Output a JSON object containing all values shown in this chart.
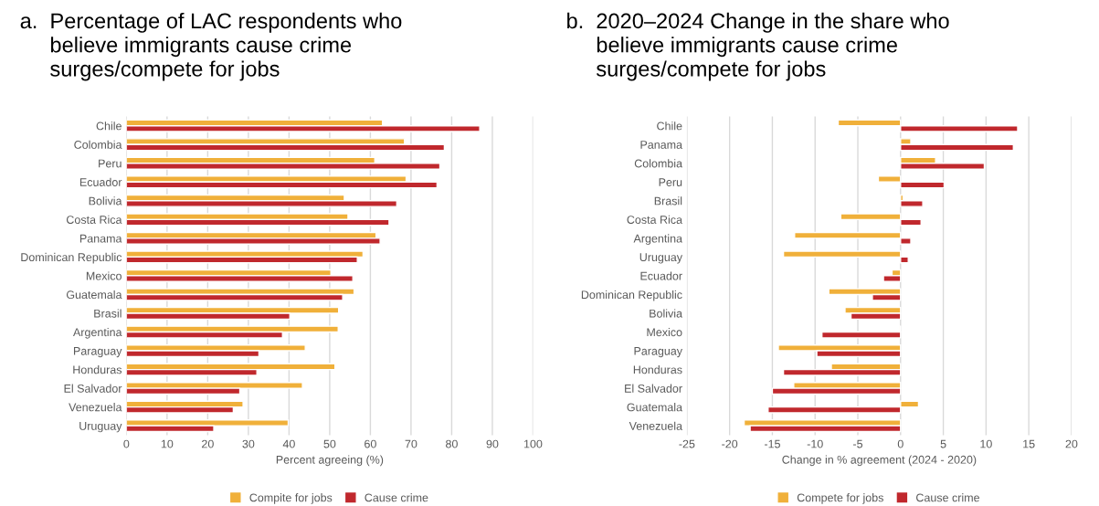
{
  "chart_data": [
    {
      "type": "bar",
      "orientation": "horizontal",
      "title": "a.  Percentage of LAC respondents who\n     believe immigrants cause crime\n     surges/compete for jobs",
      "xlabel": "Percent agreeing (%)",
      "categories": [
        "Chile",
        "Colombia",
        "Peru",
        "Ecuador",
        "Bolivia",
        "Costa Rica",
        "Panama",
        "Dominican Republic",
        "Mexico",
        "Guatemala",
        "Brasil",
        "Argentina",
        "Paraguay",
        "Honduras",
        "El Salvador",
        "Venezuela",
        "Uruguay"
      ],
      "series": [
        {
          "name": "Compite for jobs",
          "color": "#f0b03a",
          "values": [
            63.0,
            68.4,
            61.1,
            68.8,
            53.6,
            54.5,
            61.4,
            58.2,
            50.3,
            56.0,
            52.2,
            52.1,
            44.0,
            51.3,
            43.3,
            28.7,
            39.8
          ]
        },
        {
          "name": "Cause crime",
          "color": "#c0282d",
          "values": [
            86.9,
            78.2,
            77.1,
            76.4,
            66.5,
            64.6,
            62.4,
            56.8,
            55.7,
            53.2,
            40.2,
            38.4,
            32.6,
            32.1,
            27.9,
            26.3,
            21.5
          ]
        }
      ],
      "xlim": [
        0,
        100
      ],
      "xticks": [
        0,
        10,
        20,
        30,
        40,
        50,
        60,
        70,
        80,
        90,
        100
      ],
      "grid": "x",
      "legend": "bottom"
    },
    {
      "type": "bar",
      "orientation": "horizontal",
      "title": "b.  2020–2024 Change in the share who\n     believe immigrants cause crime\n     surges/compete for jobs",
      "xlabel": "Change in % agreement (2024 - 2020)",
      "categories": [
        "Chile",
        "Panama",
        "Colombia",
        "Peru",
        "Brasil",
        "Costa Rica",
        "Argentina",
        "Uruguay",
        "Ecuador",
        "Dominican Republic",
        "Bolivia",
        "Mexico",
        "Paraguay",
        "Honduras",
        "El Salvador",
        "Guatemala",
        "Venezuela"
      ],
      "series": [
        {
          "name": "Compete for jobs",
          "color": "#f0b03a",
          "values": [
            -7.3,
            1.2,
            4.1,
            -2.6,
            0.3,
            -7.0,
            -12.4,
            -13.7,
            -1.0,
            -8.4,
            -6.5,
            -0.1,
            -14.3,
            -8.1,
            -12.5,
            2.1,
            -18.3
          ]
        },
        {
          "name": "Cause crime",
          "color": "#c0282d",
          "values": [
            13.7,
            13.2,
            9.8,
            5.1,
            2.6,
            2.4,
            1.2,
            0.9,
            -2.0,
            -3.3,
            -5.8,
            -9.2,
            -9.8,
            -13.7,
            -15.0,
            -15.5,
            -17.6
          ]
        }
      ],
      "xlim": [
        -25,
        20
      ],
      "xticks": [
        -25,
        -20,
        -15,
        -10,
        -5,
        0,
        5,
        10,
        15,
        20
      ],
      "grid": "x",
      "legend": "bottom"
    }
  ]
}
